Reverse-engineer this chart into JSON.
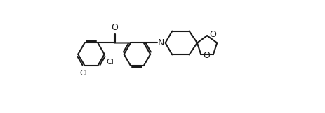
{
  "bg_color": "#ffffff",
  "line_color": "#1a1a1a",
  "lw": 1.5,
  "fig_width": 4.64,
  "fig_height": 1.62,
  "dpi": 100,
  "xlim": [
    0,
    9.2
  ],
  "ylim": [
    -1.8,
    3.2
  ]
}
